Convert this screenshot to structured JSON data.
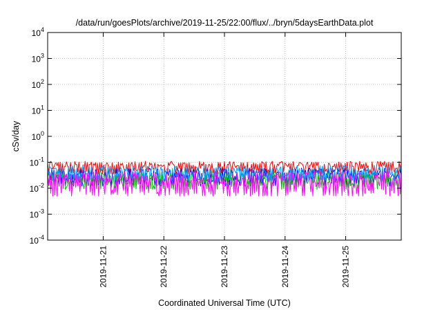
{
  "chart_data": {
    "type": "line",
    "title": "/data/run/goesPlots/archive/2019-11-25/22:00/flux/../bryn/5daysEarthData.plot",
    "xlabel": "Coordinated Universal Time (UTC)",
    "ylabel": "cSv/day",
    "yscale": "log",
    "ylim": [
      0.0001,
      10000
    ],
    "xlim": [
      "2019-11-20 02:00",
      "2019-11-25 22:00"
    ],
    "grid": true,
    "legend": "none",
    "x_ticks": [
      "2019-11-21",
      "2019-11-22",
      "2019-11-23",
      "2019-11-24",
      "2019-11-25"
    ],
    "y_ticks": [
      {
        "base": "10",
        "exp": "4",
        "value": 10000
      },
      {
        "base": "10",
        "exp": "3",
        "value": 1000
      },
      {
        "base": "10",
        "exp": "2",
        "value": 100
      },
      {
        "base": "10",
        "exp": "1",
        "value": 10
      },
      {
        "base": "10",
        "exp": "0",
        "value": 1
      },
      {
        "base": "10",
        "exp": "-1",
        "value": 0.1
      },
      {
        "base": "10",
        "exp": "-2",
        "value": 0.01
      },
      {
        "base": "10",
        "exp": "-3",
        "value": 0.001
      },
      {
        "base": "10",
        "exp": "-4",
        "value": 0.0001
      }
    ],
    "series": [
      {
        "color": "#ff0000",
        "low": 0.035,
        "high": 0.11
      },
      {
        "color": "#0000ff",
        "low": 0.012,
        "high": 0.06
      },
      {
        "color": "#00c000",
        "low": 0.009,
        "high": 0.045
      },
      {
        "color": "#00a0ff",
        "low": 0.02,
        "high": 0.075
      },
      {
        "color": "#ff00ff",
        "low": 0.005,
        "high": 0.045
      }
    ]
  }
}
